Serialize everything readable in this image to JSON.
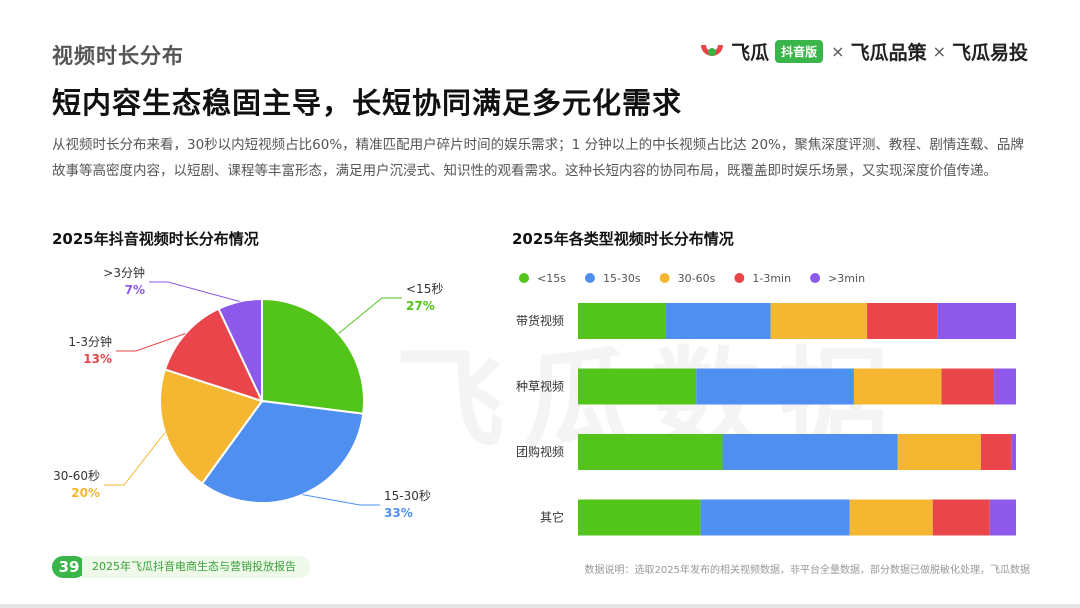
{
  "header": {
    "section_label": "视频时长分布",
    "headline": "短内容生态稳固主导，长短协同满足多元化需求",
    "brand": {
      "name1": "飞瓜",
      "badge": "抖音版",
      "separator": "×",
      "name2": "飞瓜品策",
      "name3": "飞瓜易投"
    }
  },
  "intro_text": "从视频时长分布来看，30秒以内短视频占比60%，精准匹配用户碎片时间的娱乐需求；1 分钟以上的中长视频占比达 20%，聚焦深度评测、教程、剧情连载、品牌故事等高密度内容，以短剧、课程等丰富形态，满足用户沉浸式、知识性的观看需求。这种长短内容的协同布局，既覆盖即时娱乐场景，又实现深度价值传递。",
  "watermark": "飞瓜数据",
  "colors": {
    "lt15": "#52c41a",
    "s15_30": "#4f8ff0",
    "s30_60": "#f5b731",
    "m1_3": "#e9454a",
    "gt3": "#8c59ea"
  },
  "chart_data": [
    {
      "type": "pie",
      "title": "2025年抖音视频时长分布情况",
      "slices": [
        {
          "label": "<15秒",
          "pct_label": "27%",
          "value": 27,
          "color": "#52c41a"
        },
        {
          "label": "15-30秒",
          "pct_label": "33%",
          "value": 33,
          "color": "#4f8ff0"
        },
        {
          "label": "30-60秒",
          "pct_label": "20%",
          "value": 20,
          "color": "#f5b731"
        },
        {
          "label": "1-3分钟",
          "pct_label": "13%",
          "value": 13,
          "color": "#e9454a"
        },
        {
          "label": ">3分钟",
          "pct_label": "7%",
          "value": 7,
          "color": "#8c59ea"
        }
      ]
    },
    {
      "type": "bar",
      "orientation": "horizontal-stacked-100",
      "title": "2025年各类型视频时长分布情况",
      "legend_position": "top-left",
      "categories": [
        "带货视频",
        "种草视频",
        "团购视频",
        "其它"
      ],
      "series": [
        {
          "name": "<15s",
          "color": "#52c41a",
          "values": [
            20,
            27,
            33,
            28
          ]
        },
        {
          "name": "15-30s",
          "color": "#4f8ff0",
          "values": [
            24,
            36,
            40,
            34
          ]
        },
        {
          "name": "30-60s",
          "color": "#f5b731",
          "values": [
            22,
            20,
            19,
            19
          ]
        },
        {
          "name": "1-3min",
          "color": "#e9454a",
          "values": [
            16,
            12,
            7,
            13
          ]
        },
        {
          "name": ">3min",
          "color": "#8c59ea",
          "values": [
            18,
            5,
            1,
            6
          ]
        }
      ]
    }
  ],
  "footer": {
    "page_number": "39",
    "report_title": "2025年飞瓜抖音电商生态与营销投放报告",
    "note": "数据说明：选取2025年发布的相关视频数据，非平台全量数据，部分数据已做脱敏化处理，飞瓜数据"
  }
}
